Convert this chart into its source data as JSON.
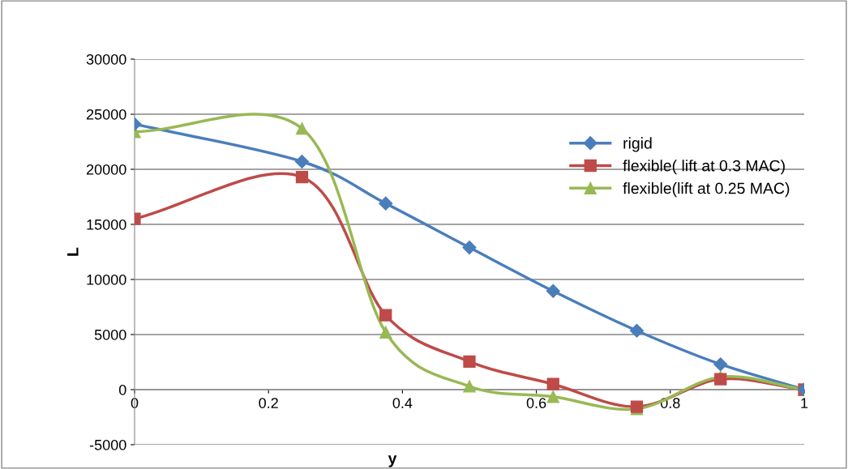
{
  "chart_data": {
    "type": "line",
    "xlabel": "y",
    "ylabel": "L",
    "x": [
      0,
      0.25,
      0.375,
      0.5,
      0.625,
      0.75,
      0.875,
      1
    ],
    "series": [
      {
        "name": "rigid",
        "color": "#4a7ebb",
        "marker": "diamond",
        "values": [
          24100,
          20700,
          16900,
          12900,
          8950,
          5350,
          2300,
          0
        ]
      },
      {
        "name": "flexible( lift at 0.3 MAC)",
        "color": "#be4b48",
        "marker": "square",
        "values": [
          15500,
          19300,
          6750,
          2550,
          500,
          -1550,
          950,
          0
        ]
      },
      {
        "name": "flexible(lift at 0.25 MAC)",
        "color": "#98b954",
        "marker": "triangle",
        "values": [
          23400,
          23700,
          5200,
          300,
          -650,
          -1750,
          1150,
          0
        ]
      }
    ],
    "xlim": [
      0,
      1
    ],
    "xticks": [
      0,
      0.2,
      0.4,
      0.6,
      0.8,
      1
    ],
    "ylim": [
      -5000,
      30000
    ],
    "yticks": [
      -5000,
      0,
      5000,
      10000,
      15000,
      20000,
      25000,
      30000
    ],
    "grid": "y",
    "legend": "right"
  }
}
